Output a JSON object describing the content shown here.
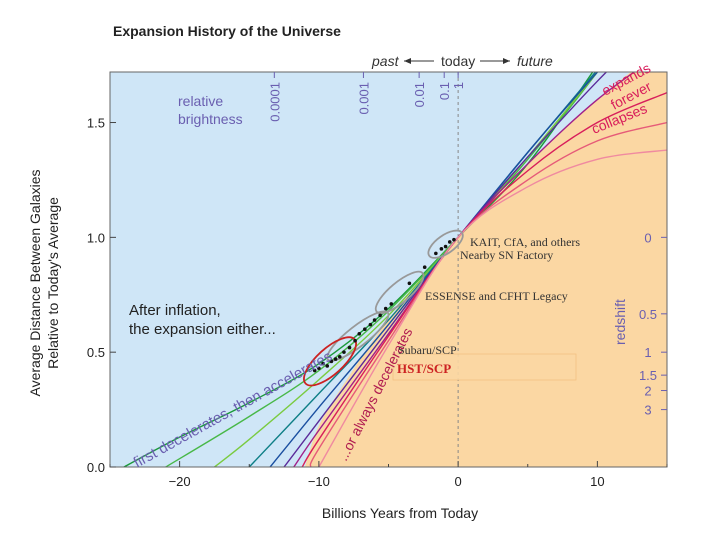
{
  "chart_data": {
    "type": "line",
    "title": "Expansion History of the Universe",
    "xlabel": "Billions Years from Today",
    "ylabel_line1": "Average Distance Between Galaxies",
    "ylabel_line2": "Relative to Today's Average",
    "xlim": [
      -25,
      15
    ],
    "ylim": [
      0,
      1.72
    ],
    "x_ticks": [
      -20,
      -10,
      0,
      10
    ],
    "x_tick_labels": [
      "−20",
      "−10",
      "0",
      "10"
    ],
    "y_ticks": [
      0.0,
      0.5,
      1.0,
      1.5
    ],
    "y_tick_labels": [
      "0.0",
      "0.5",
      "1.0",
      "1.5"
    ],
    "grid": false,
    "top_scale": {
      "past": "past",
      "today": "today",
      "future": "future",
      "brightness_label_line1": "relative",
      "brightness_label_line2": "brightness",
      "brightness_ticks": [
        {
          "label": "0.0001",
          "x": -13.2
        },
        {
          "label": "0.001",
          "x": -6.8
        },
        {
          "label": "0.01",
          "x": -2.8
        },
        {
          "label": "0.1",
          "x": -1.0
        },
        {
          "label": "1",
          "x": 0
        }
      ]
    },
    "redshift_scale": {
      "label": "redshift",
      "ticks": [
        {
          "label": "0",
          "y": 1.0
        },
        {
          "label": "0.5",
          "y": 0.667
        },
        {
          "label": "1",
          "y": 0.5
        },
        {
          "label": "1.5",
          "y": 0.4
        },
        {
          "label": "2",
          "y": 0.333
        },
        {
          "label": "3",
          "y": 0.25
        }
      ]
    },
    "regions": {
      "accelerates_color": "#cfe6f7",
      "decelerates_color": "#fbd7a3"
    },
    "annotations": {
      "after_inflation_line1": "After inflation,",
      "after_inflation_line2": "the expansion either...",
      "first_decelerates": "first decelerates, then accelerates",
      "always_decelerates": "...or always decelerates",
      "expands_forever_line1": "expands",
      "expands_forever_line2": "forever",
      "collapses": "collapses"
    },
    "surveys": [
      {
        "name": "KAIT, CfA, and others",
        "line2": "Nearby SN Factory"
      },
      {
        "name": "ESSENSE and CFHT Legacy"
      },
      {
        "name": "Subaru/SCP"
      },
      {
        "name": "HST/SCP",
        "highlight_color": "#cc2222"
      }
    ],
    "series": [
      {
        "color": "#1a9a3a",
        "bang_time": -24.0,
        "accel": 0.55,
        "t": [
          -24.0,
          -20,
          -15,
          -10,
          -5,
          0,
          5,
          10,
          15
        ],
        "y": [
          0.0,
          0.13,
          0.28,
          0.45,
          0.69,
          1.0,
          1.32,
          1.75,
          2.2
        ]
      },
      {
        "color": "#48b848",
        "bang_time": -21.0,
        "accel": 0.4,
        "t": [
          -21.0,
          -15,
          -10,
          -5,
          0,
          5,
          10,
          15
        ],
        "y": [
          0.0,
          0.22,
          0.42,
          0.68,
          1.0,
          1.34,
          1.72,
          2.15
        ]
      },
      {
        "color": "#7acb40",
        "bang_time": -17.5,
        "accel": 0.25,
        "t": [
          -17.5,
          -15,
          -10,
          -5,
          0,
          5,
          10
        ],
        "y": [
          0.0,
          0.12,
          0.38,
          0.66,
          1.0,
          1.35,
          1.72
        ]
      },
      {
        "color": "#0e7f86",
        "bang_time": -15.0,
        "accel": 0.12,
        "t": [
          -15.0,
          -10,
          -5,
          0,
          5,
          10,
          15
        ],
        "y": [
          0.0,
          0.32,
          0.64,
          1.0,
          1.37,
          1.73,
          2.1
        ]
      },
      {
        "color": "#1a4fa0",
        "bang_time": -13.5,
        "accel": 0.05,
        "t": [
          -13.5,
          -10,
          -5,
          0,
          5,
          10,
          15
        ],
        "y": [
          0.0,
          0.26,
          0.62,
          1.0,
          1.37,
          1.72,
          2.05
        ]
      },
      {
        "color": "#5a2a9a",
        "bang_time": -12.5,
        "accel": 0.0,
        "t": [
          -12.5,
          -10,
          -5,
          0,
          5,
          10,
          15
        ],
        "y": [
          0.0,
          0.2,
          0.6,
          1.0,
          1.35,
          1.68,
          1.98
        ]
      },
      {
        "color": "#a0208a",
        "bang_time": -11.8,
        "accel": -0.1,
        "t": [
          -11.8,
          -10,
          -5,
          0,
          5,
          10,
          15
        ],
        "y": [
          0.0,
          0.16,
          0.58,
          1.0,
          1.32,
          1.6,
          1.82
        ]
      },
      {
        "color": "#d81e5b",
        "bang_time": -11.2,
        "accel": -0.2,
        "t": [
          -11.2,
          -10,
          -5,
          0,
          5,
          10,
          15
        ],
        "y": [
          0.0,
          0.12,
          0.57,
          1.0,
          1.29,
          1.5,
          1.63
        ]
      },
      {
        "color": "#e65a78",
        "bang_time": -10.6,
        "accel": -0.3,
        "t": [
          -10.6,
          -10,
          -5,
          0,
          5,
          10,
          15
        ],
        "y": [
          0.0,
          0.08,
          0.55,
          1.0,
          1.25,
          1.42,
          1.5
        ]
      },
      {
        "color": "#f08aa0",
        "bang_time": -10.0,
        "accel": -0.4,
        "t": [
          -10.0,
          -5,
          0,
          5,
          10,
          15
        ],
        "y": [
          0.0,
          0.53,
          1.0,
          1.22,
          1.34,
          1.38
        ]
      }
    ],
    "data_points": [
      {
        "t": -10.3,
        "y": 0.42
      },
      {
        "t": -10.0,
        "y": 0.43
      },
      {
        "t": -9.7,
        "y": 0.45
      },
      {
        "t": -9.4,
        "y": 0.44
      },
      {
        "t": -9.1,
        "y": 0.46
      },
      {
        "t": -8.8,
        "y": 0.47
      },
      {
        "t": -8.5,
        "y": 0.48
      },
      {
        "t": -8.2,
        "y": 0.5
      },
      {
        "t": -7.8,
        "y": 0.52
      },
      {
        "t": -7.4,
        "y": 0.55
      },
      {
        "t": -7.1,
        "y": 0.58
      },
      {
        "t": -6.7,
        "y": 0.6
      },
      {
        "t": -6.3,
        "y": 0.62
      },
      {
        "t": -6.0,
        "y": 0.64
      },
      {
        "t": -5.6,
        "y": 0.66
      },
      {
        "t": -5.2,
        "y": 0.69
      },
      {
        "t": -4.8,
        "y": 0.71
      },
      {
        "t": -3.5,
        "y": 0.8
      },
      {
        "t": -2.4,
        "y": 0.87
      },
      {
        "t": -1.6,
        "y": 0.93
      },
      {
        "t": -1.2,
        "y": 0.95
      },
      {
        "t": -0.9,
        "y": 0.96
      },
      {
        "t": -0.6,
        "y": 0.98
      },
      {
        "t": -0.3,
        "y": 0.99
      }
    ]
  }
}
